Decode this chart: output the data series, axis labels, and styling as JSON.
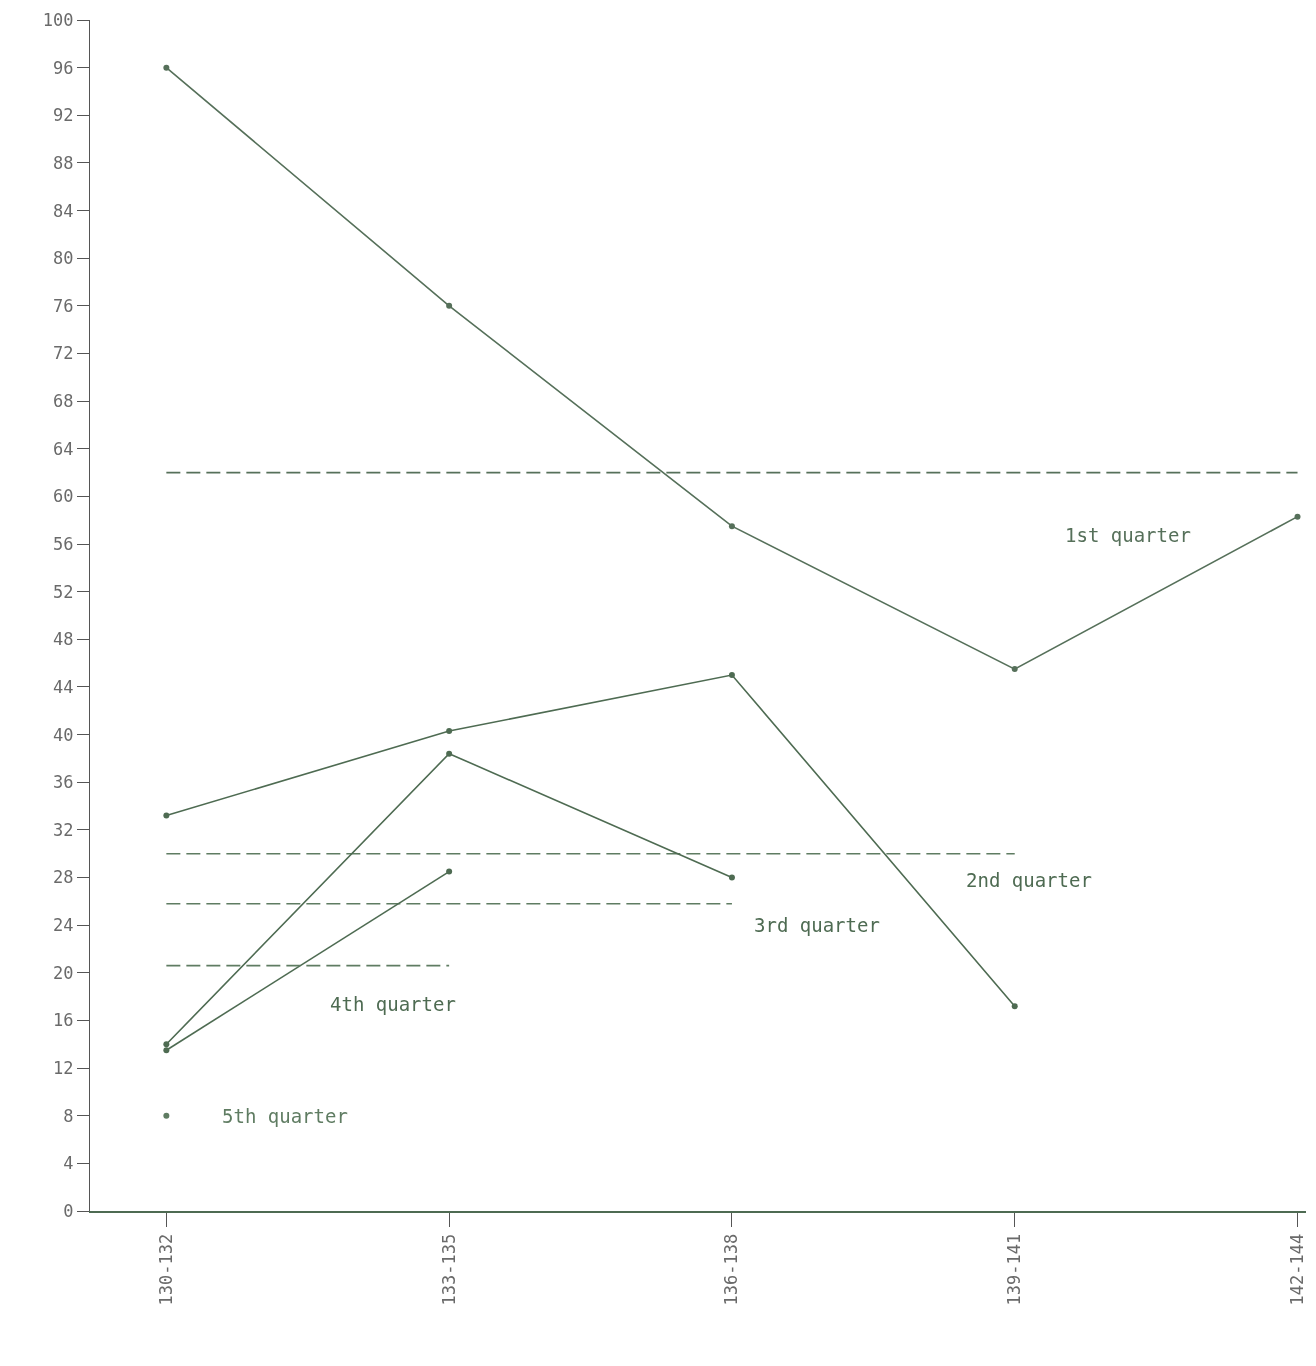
{
  "chart_data": {
    "type": "line",
    "categories": [
      "130-132",
      "133-135",
      "136-138",
      "139-141",
      "142-144"
    ],
    "ylim": [
      0,
      100
    ],
    "yticks": [
      0,
      4,
      8,
      12,
      16,
      20,
      24,
      28,
      32,
      36,
      40,
      44,
      48,
      52,
      56,
      60,
      64,
      68,
      72,
      76,
      80,
      84,
      88,
      92,
      96,
      100
    ],
    "grid": false,
    "legend": false,
    "marker": "circle",
    "line_style": "solid",
    "series": [
      {
        "name": "1st quarter",
        "color": "#56705a",
        "values": [
          96,
          76,
          57.5,
          45.5,
          58.3
        ]
      },
      {
        "color": "#56705a",
        "values": [
          62,
          62,
          62,
          62,
          62
        ],
        "line_style": "dashed",
        "marker": "none"
      },
      {
        "name": "2nd quarter",
        "color": "#4e6b52",
        "values": [
          33.2,
          40.3,
          45,
          17.2,
          null
        ]
      },
      {
        "color": "#5f7c62",
        "values": [
          30,
          30,
          30,
          30,
          null
        ],
        "line_style": "dashed",
        "marker": "none"
      },
      {
        "name": "3rd quarter",
        "color": "#4e6b52",
        "values": [
          14,
          38.4,
          28,
          null,
          null
        ]
      },
      {
        "color": "#5f7c62",
        "values": [
          25.8,
          25.8,
          25.8,
          null,
          null
        ],
        "line_style": "dashed",
        "marker": "none"
      },
      {
        "name": "4th quarter",
        "color": "#4e6b52",
        "values": [
          13.5,
          28.5,
          null,
          null,
          null
        ]
      },
      {
        "color": "#5f7c62",
        "values": [
          20.6,
          20.6,
          null,
          null,
          null
        ],
        "line_style": "dashed",
        "marker": "none"
      },
      {
        "name": "5th quarter",
        "type": "scatter",
        "color": "#5f7c62",
        "values": [
          8,
          null,
          null,
          null,
          null
        ]
      }
    ]
  }
}
